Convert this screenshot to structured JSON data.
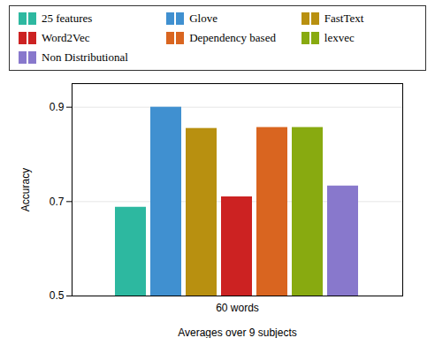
{
  "chart_data": {
    "type": "bar",
    "xlabel": "Averages over 9 subjects",
    "ylabel": "Accuracy",
    "categories": [
      "60 words"
    ],
    "series": [
      {
        "name": "25 features",
        "color": "#2db8a0",
        "values": [
          0.688
        ]
      },
      {
        "name": "Glove",
        "color": "#4090d0",
        "values": [
          0.9
        ]
      },
      {
        "name": "FastText",
        "color": "#b89010",
        "values": [
          0.855
        ]
      },
      {
        "name": "Word2Vec",
        "color": "#cc2222",
        "values": [
          0.71
        ]
      },
      {
        "name": "Dependency based",
        "color": "#d96520",
        "values": [
          0.857
        ]
      },
      {
        "name": "lexvec",
        "color": "#88aa10",
        "values": [
          0.857
        ]
      },
      {
        "name": "Non Distributional",
        "color": "#8878cc",
        "values": [
          0.733
        ]
      }
    ],
    "ylim": [
      0.5,
      0.95
    ],
    "yticks": [
      0.5,
      0.7,
      0.9
    ],
    "grid": true,
    "legend": "top"
  }
}
